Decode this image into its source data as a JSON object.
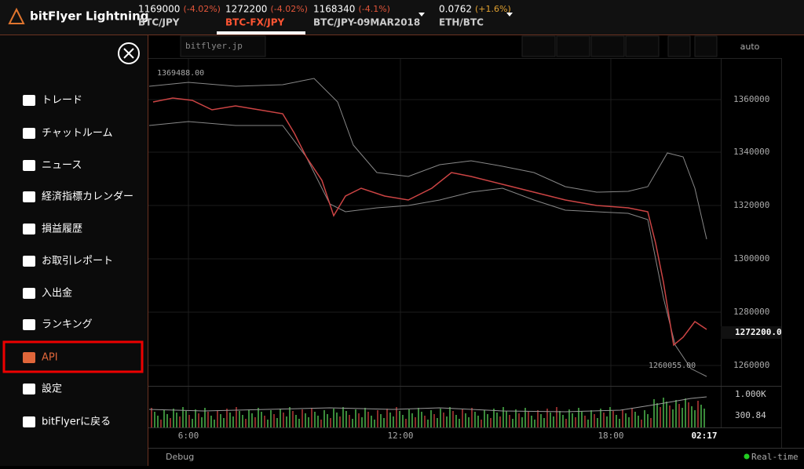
{
  "header": {
    "brand": "bitFlyer Lightning",
    "tickers": [
      {
        "price": "1169000",
        "change": "(-4.02%)",
        "pair": "BTC/JPY"
      },
      {
        "price": "1272200",
        "change": "(-4.02%)",
        "pair": "BTC-FX/JPY"
      },
      {
        "price": "1168340",
        "change": "(-4.1%)",
        "pair": "BTC/JPY-09MAR2018"
      },
      {
        "price": "0.0762",
        "change": "(+1.6%)",
        "pair": "ETH/BTC"
      }
    ]
  },
  "toolbar": {
    "site": "bitflyer.jp",
    "scale": "auto"
  },
  "menu": {
    "items": [
      "トレード",
      "チャットルーム",
      "ニュース",
      "経済指標カレンダー",
      "損益履歴",
      "お取引レポート",
      "入出金",
      "ランキング",
      "API",
      "設定",
      "bitFlyerに戻る"
    ]
  },
  "chart": {
    "price_labels": [
      "1360000",
      "1340000",
      "1320000",
      "1300000",
      "1280000",
      "1260000"
    ],
    "current_price": "1272200.0",
    "high_label": "1369488.00",
    "low_label": "1260055.00",
    "volume_labels": [
      "1.000K",
      "300.84"
    ],
    "time_labels": [
      "6:00",
      "12:00",
      "18:00",
      "02:17"
    ]
  },
  "footer": {
    "debug": "Debug",
    "status": "Real-time"
  }
}
